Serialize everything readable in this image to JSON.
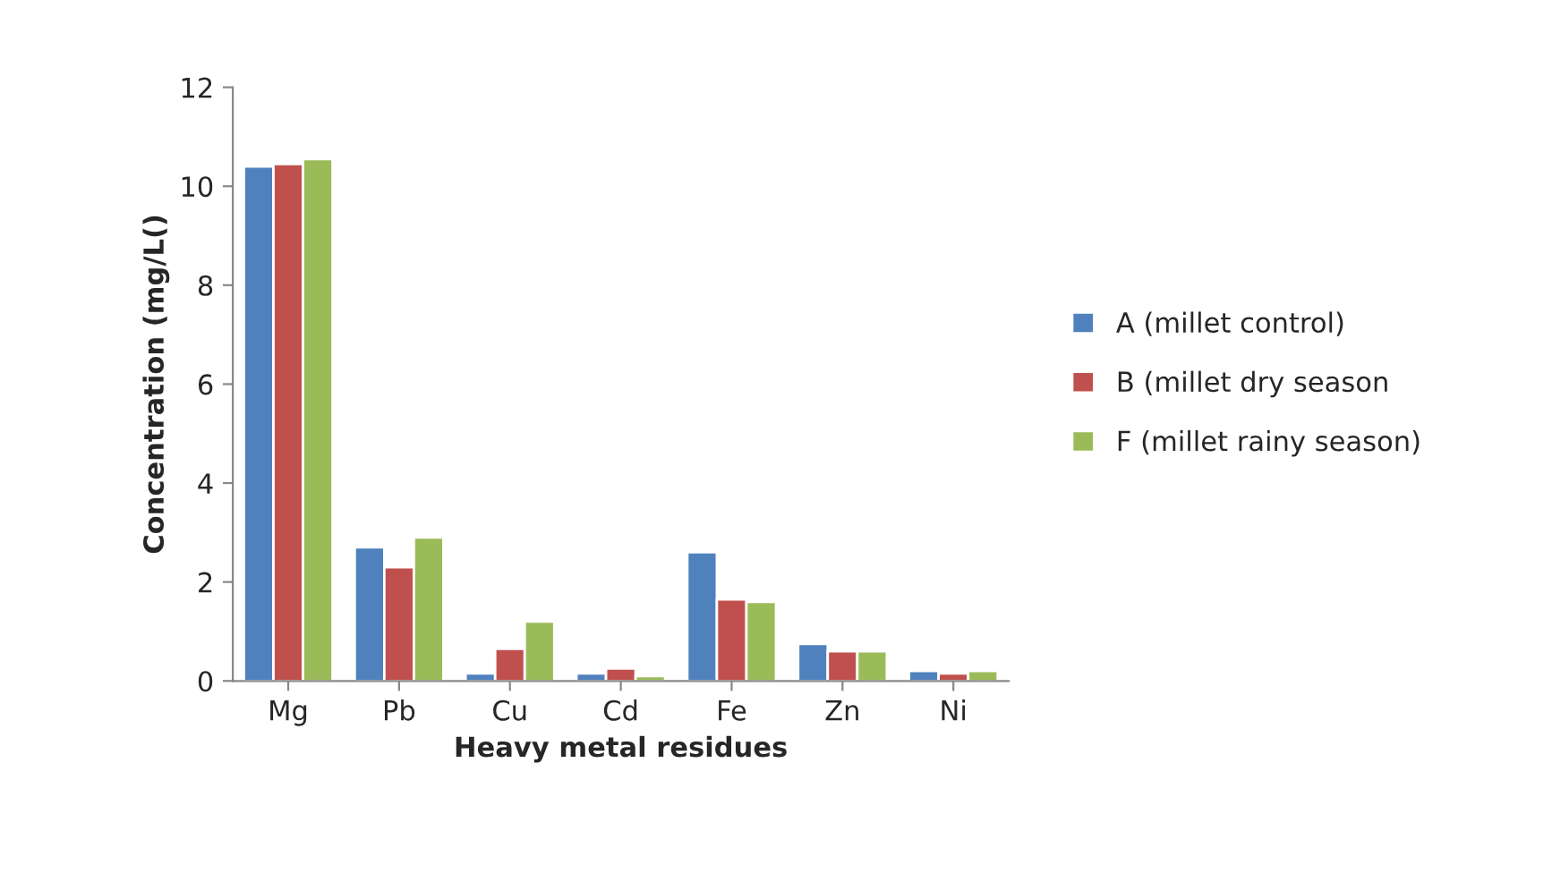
{
  "chart_data": {
    "type": "bar",
    "xlabel": "Heavy metal residues",
    "ylabel": "Concentration (mg/L()",
    "categories": [
      "Mg",
      "Pb",
      "Cu",
      "Cd",
      "Fe",
      "Zn",
      "Ni"
    ],
    "series": [
      {
        "name": "A (millet control)",
        "color": "#4f81bd",
        "values": [
          10.4,
          2.7,
          0.15,
          0.15,
          2.6,
          0.75,
          0.2
        ]
      },
      {
        "name": "B (millet dry season",
        "color": "#c0504d",
        "values": [
          10.45,
          2.3,
          0.65,
          0.25,
          1.65,
          0.6,
          0.15
        ]
      },
      {
        "name": "F (millet rainy season)",
        "color": "#9bbb59",
        "values": [
          10.55,
          2.9,
          1.2,
          0.1,
          1.6,
          0.6,
          0.2
        ]
      }
    ],
    "ylim": [
      0,
      12
    ],
    "yticks": [
      0,
      2,
      4,
      6,
      8,
      10,
      12
    ],
    "grid": false,
    "legend": "right"
  }
}
